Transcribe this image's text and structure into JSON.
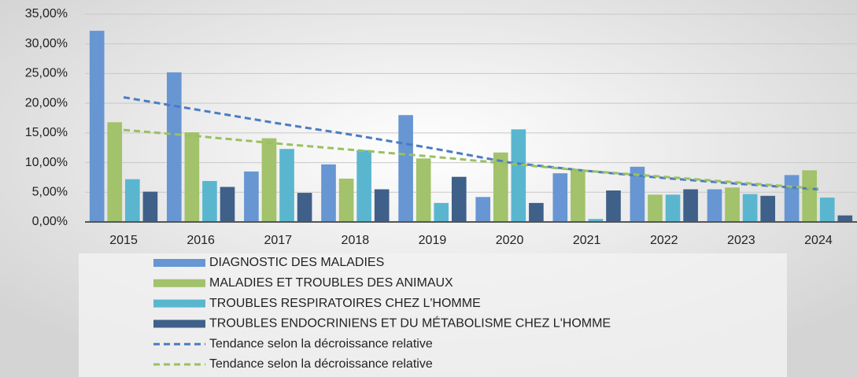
{
  "chart_data": {
    "type": "bar",
    "categories": [
      "2015",
      "2016",
      "2017",
      "2018",
      "2019",
      "2020",
      "2021",
      "2022",
      "2023",
      "2024"
    ],
    "series": [
      {
        "name": "DIAGNOSTIC DES MALADIES",
        "color": "#6796d2",
        "values": [
          32.2,
          25.2,
          8.5,
          9.7,
          18.0,
          4.2,
          8.2,
          9.3,
          5.5,
          7.9
        ]
      },
      {
        "name": "MALADIES ET TROUBLES DES ANIMAUX",
        "color": "#a2c26b",
        "values": [
          16.8,
          15.1,
          14.1,
          7.3,
          10.7,
          11.7,
          8.7,
          4.6,
          5.8,
          8.7
        ]
      },
      {
        "name": "TROUBLES RESPIRATOIRES CHEZ L'HOMME",
        "color": "#5ab6cf",
        "values": [
          7.2,
          6.9,
          12.3,
          12.1,
          3.2,
          15.6,
          0.5,
          4.6,
          4.7,
          4.1
        ]
      },
      {
        "name": "TROUBLES ENDOCRINIENS ET DU MÉTABOLISME CHEZ L'HOMME",
        "color": "#3f6089",
        "values": [
          5.1,
          5.9,
          4.9,
          5.5,
          7.6,
          3.2,
          5.3,
          5.5,
          4.4,
          1.1
        ]
      }
    ],
    "trendlines": [
      {
        "name": "Tendance selon la décroissance relative",
        "color": "#4a7cc4",
        "values": [
          21.0,
          18.8,
          16.6,
          14.6,
          12.4,
          10.0,
          8.6,
          7.4,
          6.4,
          5.5
        ]
      },
      {
        "name": "Tendance selon la décroissance relative",
        "color": "#9bc060",
        "values": [
          15.5,
          14.4,
          13.2,
          12.1,
          11.0,
          9.8,
          8.6,
          7.6,
          6.6,
          5.6
        ]
      }
    ],
    "ylim": [
      0,
      35
    ],
    "yticks": [
      {
        "value": 0,
        "label": "0,00%"
      },
      {
        "value": 5,
        "label": "5,00%"
      },
      {
        "value": 10,
        "label": "10,00%"
      },
      {
        "value": 15,
        "label": "15,00%"
      },
      {
        "value": 20,
        "label": "20,00%"
      },
      {
        "value": 25,
        "label": "25,00%"
      },
      {
        "value": 30,
        "label": "30,00%"
      },
      {
        "value": 35,
        "label": "35,00%"
      }
    ],
    "grid": true
  }
}
